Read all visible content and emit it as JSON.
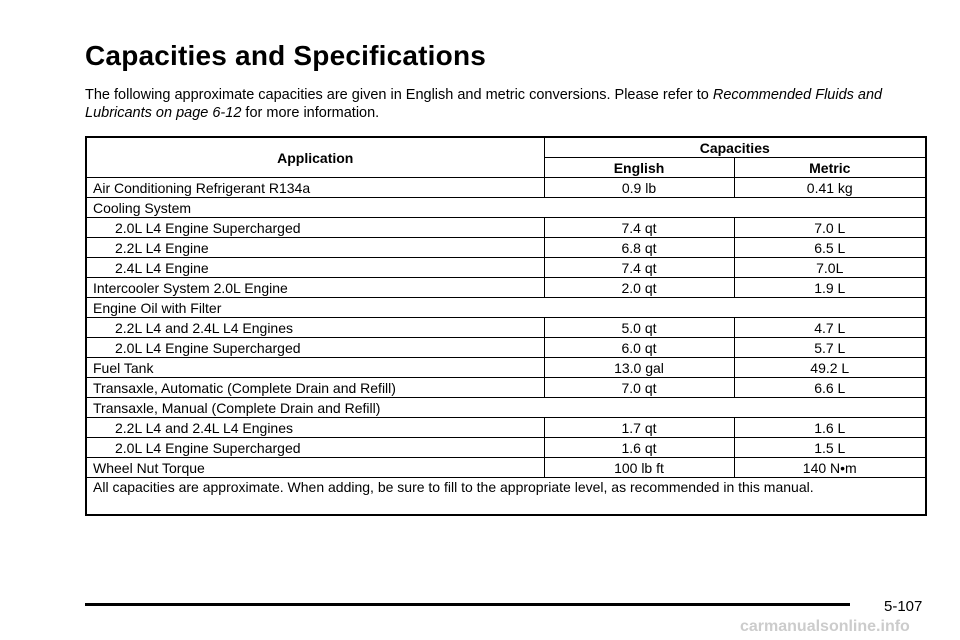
{
  "header": {
    "title": "Capacities and Specifications"
  },
  "intro": {
    "before": "The following approximate capacities are given in English and metric conversions. Please refer to ",
    "link": "Recommended Fluids and Lubricants on page 6-12",
    "after": " for more information."
  },
  "table": {
    "columns": {
      "application": "Application",
      "capacities": "Capacities",
      "english": "English",
      "metric": "Metric"
    },
    "rows": [
      {
        "application": "Air Conditioning Refrigerant R134a",
        "english": "0.9 lb",
        "metric": "0.41 kg"
      },
      {
        "group": "Cooling System",
        "items": [
          {
            "application": "2.0L L4 Engine Supercharged",
            "english": "7.4 qt",
            "metric": "7.0 L"
          },
          {
            "application": "2.2L L4 Engine",
            "english": "6.8 qt",
            "metric": "6.5 L"
          },
          {
            "application": "2.4L L4 Engine",
            "english": "7.4 qt",
            "metric": "7.0L"
          }
        ]
      },
      {
        "application": "Intercooler System 2.0L Engine",
        "english": "2.0 qt",
        "metric": "1.9 L"
      },
      {
        "group": "Engine Oil with Filter",
        "items": [
          {
            "application": "2.2L L4 and 2.4L L4 Engines",
            "english": "5.0 qt",
            "metric": "4.7 L"
          },
          {
            "application": "2.0L L4 Engine Supercharged",
            "english": "6.0 qt",
            "metric": "5.7 L"
          }
        ]
      },
      {
        "application": "Fuel Tank",
        "english": "13.0 gal",
        "metric": "49.2 L"
      },
      {
        "application": "Transaxle, Automatic (Complete Drain and Refill)",
        "english": "7.0 qt",
        "metric": "6.6 L"
      },
      {
        "group": "Transaxle, Manual (Complete Drain and Refill)",
        "items": [
          {
            "application": "2.2L L4 and 2.4L L4 Engines",
            "english": "1.7 qt",
            "metric": "1.6 L"
          },
          {
            "application": "2.0L L4 Engine Supercharged",
            "english": "1.6 qt",
            "metric": "1.5 L"
          }
        ]
      },
      {
        "application": "Wheel Nut Torque",
        "english": "100 lb ft",
        "metric": "140 N•m"
      }
    ],
    "note": "All capacities are approximate. When adding, be sure to fill to the appropriate level, as recommended in this manual."
  },
  "footer": {
    "page": "5-107",
    "watermark": "carmanualsonline.info"
  }
}
